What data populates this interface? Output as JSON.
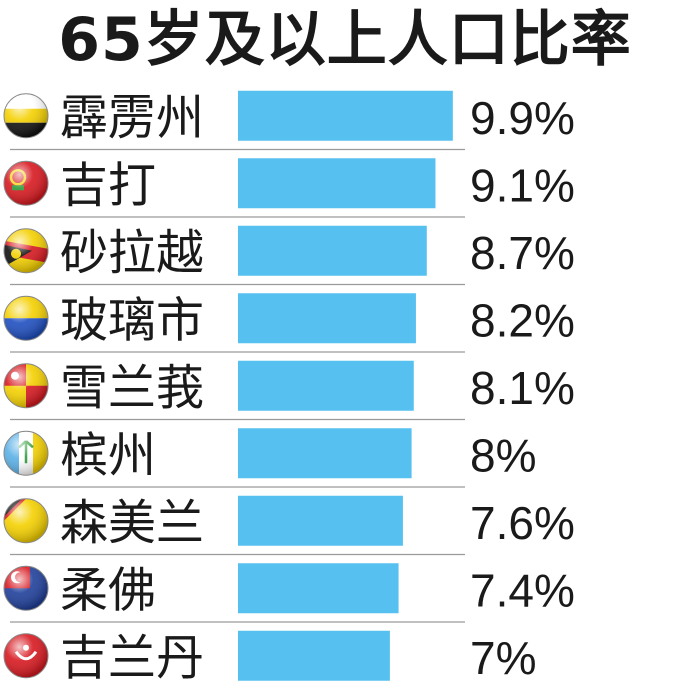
{
  "chart_data": {
    "type": "bar",
    "orientation": "horizontal",
    "title": "65岁及以上人口比率",
    "categories": [
      "霹雳州",
      "吉打",
      "砂拉越",
      "玻璃市",
      "雪兰莪",
      "槟州",
      "森美兰",
      "柔佛",
      "吉兰丹"
    ],
    "values": [
      9.9,
      9.1,
      8.7,
      8.2,
      8.1,
      8,
      7.6,
      7.4,
      7
    ],
    "value_labels": [
      "9.9%",
      "9.1%",
      "8.7%",
      "8.2%",
      "8.1%",
      "8%",
      "7.6%",
      "7.4%",
      "7%"
    ],
    "unit": "%",
    "flag_icons": [
      "perak-flag-icon",
      "kedah-flag-icon",
      "sarawak-flag-icon",
      "perlis-flag-icon",
      "selangor-flag-icon",
      "penang-flag-icon",
      "negeri-sembilan-flag-icon",
      "johor-flag-icon",
      "kelantan-flag-icon"
    ],
    "bar_color": "#56c1f0",
    "separator_color": "#9a9a9a",
    "grid": false,
    "legend": "none"
  }
}
